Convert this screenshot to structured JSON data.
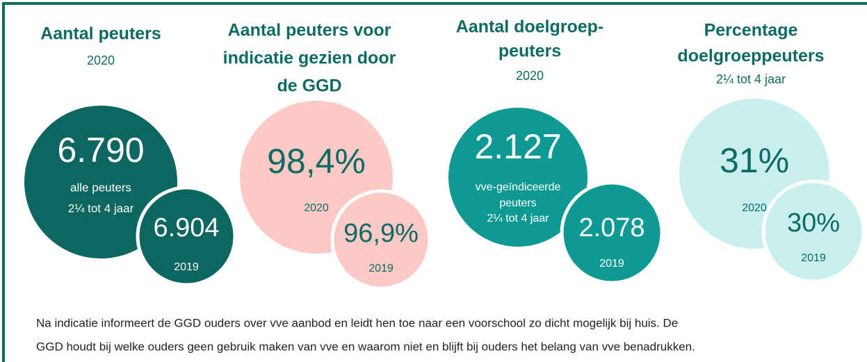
{
  "panels": [
    {
      "title": [
        "Aantal peuters"
      ],
      "subtitle": "2020",
      "main": {
        "value": "6.790",
        "note": [
          "alle peuters",
          "2¼  tot 4 jaar"
        ]
      },
      "previous": {
        "value": "6.904",
        "year": "2019"
      }
    },
    {
      "title": [
        "Aantal peuters voor",
        "indicatie gezien door",
        "de GGD"
      ],
      "main": {
        "value": "98,4%",
        "note": [
          "2020"
        ]
      },
      "previous": {
        "value": "96,9%",
        "year": "2019"
      }
    },
    {
      "title": [
        "Aantal doelgroep-",
        "peuters"
      ],
      "subtitle": "2020",
      "main": {
        "value": "2.127",
        "note": [
          "vve-geïndiceerde",
          "peuters",
          "2¼  tot 4 jaar"
        ]
      },
      "previous": {
        "value": "2.078",
        "year": "2019"
      }
    },
    {
      "title": [
        "Percentage",
        "doelgroeppeuters"
      ],
      "subtitle": "2¼ tot 4 jaar",
      "main": {
        "value": "31%",
        "note": [
          "2020"
        ]
      },
      "previous": {
        "value": "30%",
        "year": "2019"
      }
    }
  ],
  "footer": [
    "Na indicatie informeert de GGD ouders over vve aanbod en leidt hen toe naar een voorschool zo dicht mogelijk bij huis. De",
    "GGD houdt bij welke ouders geen gebruik maken van vve en waarom niet en blijft bij ouders het belang van vve benadrukken."
  ]
}
